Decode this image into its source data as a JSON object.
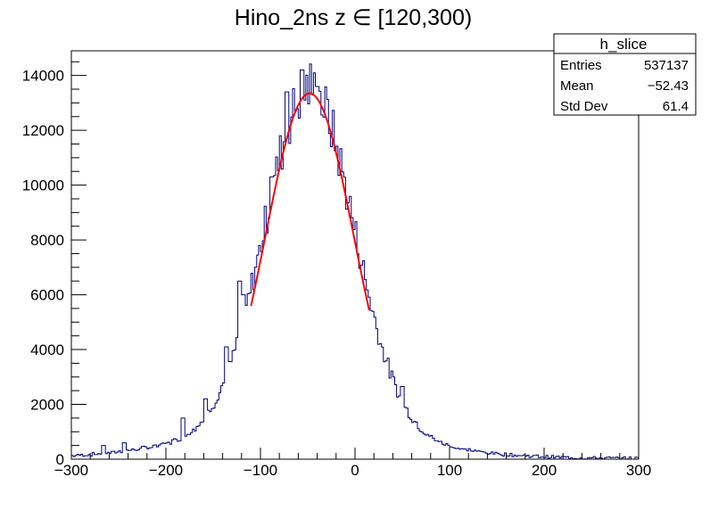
{
  "chart_data": {
    "type": "histogram",
    "title": "Hino_2ns z  ∈ [120,300)",
    "xlabel": "",
    "ylabel": "",
    "xlim": [
      -300,
      300
    ],
    "ylim": [
      0,
      14900
    ],
    "bin_width": 2,
    "x_ticks": [
      -300,
      -200,
      -100,
      0,
      100,
      200,
      300
    ],
    "x_tick_labels": [
      "−300",
      "−200",
      "−100",
      "0",
      "100",
      "200",
      "300"
    ],
    "y_ticks": [
      0,
      2000,
      4000,
      6000,
      8000,
      10000,
      12000,
      14000
    ],
    "y_tick_labels": [
      "0",
      "2000",
      "4000",
      "6000",
      "8000",
      "10000",
      "12000",
      "14000"
    ],
    "grid": false,
    "histogram_color": "#000080",
    "fit_color": "#ff0000",
    "histogram_shape": {
      "gaussian_core": {
        "amplitude": 13350,
        "mean": -48,
        "sigma": 47
      },
      "wide_component": {
        "amplitude": 1100,
        "mean": -60,
        "sigma": 110
      },
      "features": [
        {
          "x": -122,
          "value": 6500
        },
        {
          "x": -118,
          "value": 6000
        },
        {
          "x": -136,
          "value": 4100
        },
        {
          "x": -158,
          "value": 2200
        },
        {
          "x": -182,
          "value": 1500
        },
        {
          "x": -88,
          "value": 10300
        },
        {
          "x": -72,
          "value": 13400
        },
        {
          "x": -56,
          "value": 14200
        },
        {
          "x": -40,
          "value": 13600
        },
        {
          "x": 50,
          "value": 2650
        },
        {
          "x": -266,
          "value": 500
        },
        {
          "x": -244,
          "value": 600
        }
      ]
    },
    "fit": {
      "function": "gaussian",
      "amplitude": 13350,
      "mean": -48,
      "sigma": 47,
      "x_range": [
        -110,
        15
      ]
    },
    "stats_box": {
      "name": "h_slice",
      "rows": [
        {
          "label": "Entries",
          "value": "537137"
        },
        {
          "label": "Mean",
          "value": "−52.43"
        },
        {
          "label": "Std Dev",
          "value": "61.4"
        }
      ]
    }
  }
}
